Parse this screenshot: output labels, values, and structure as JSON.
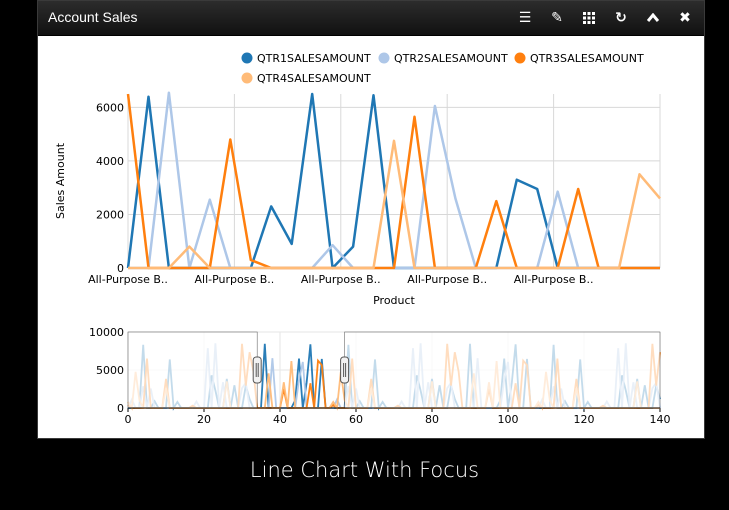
{
  "window": {
    "title": "Account Sales",
    "icons": [
      "menu-icon",
      "pencil-icon",
      "grid-icon",
      "refresh-icon",
      "collapse-icon",
      "close-icon"
    ]
  },
  "caption": "Line Chart With Focus",
  "chart_data": {
    "type": "line",
    "ylabel": "Sales Amount",
    "xlabel": "Product",
    "ylim": [
      0,
      6500
    ],
    "yticks": [
      0,
      2000,
      4000,
      6000
    ],
    "xtick_labels": [
      "All-Purpose B..",
      "All-Purpose B..",
      "All-Purpose B..",
      "All-Purpose B..",
      "All-Purpose B.."
    ],
    "legend_position": "top-right",
    "focus_range": [
      34,
      57
    ],
    "series": [
      {
        "name": "QTR1SALESAMOUNT",
        "color": "#1f77b4",
        "values": [
          0,
          6400,
          0,
          0,
          0,
          0,
          0,
          2300,
          900,
          6500,
          0,
          800,
          6450,
          0,
          0,
          0,
          0,
          0,
          0,
          3300,
          2950,
          0,
          0,
          0,
          0,
          0,
          0
        ]
      },
      {
        "name": "QTR2SALESAMOUNT",
        "color": "#aec7e8",
        "values": [
          0,
          0,
          6550,
          0,
          2550,
          0,
          0,
          0,
          0,
          0,
          850,
          0,
          0,
          0,
          0,
          6050,
          2600,
          0,
          0,
          0,
          0,
          2850,
          0,
          0,
          0,
          0,
          0
        ]
      },
      {
        "name": "QTR3SALESAMOUNT",
        "color": "#ff7f0e",
        "values": [
          6500,
          0,
          0,
          0,
          0,
          4800,
          300,
          0,
          0,
          0,
          0,
          0,
          0,
          0,
          5650,
          0,
          0,
          0,
          2500,
          0,
          0,
          0,
          2950,
          0,
          0,
          0,
          0
        ]
      },
      {
        "name": "QTR4SALESAMOUNT",
        "color": "#ffbb78",
        "values": [
          0,
          0,
          0,
          800,
          0,
          0,
          0,
          0,
          0,
          0,
          0,
          0,
          0,
          4750,
          0,
          0,
          0,
          0,
          0,
          0,
          0,
          0,
          0,
          0,
          0,
          3500,
          2600
        ]
      }
    ],
    "context": {
      "xlim": [
        0,
        140
      ],
      "ylim": [
        0,
        10000
      ],
      "xticks": [
        0,
        20,
        40,
        60,
        80,
        100,
        120,
        140
      ],
      "yticks": [
        0,
        5000,
        10000
      ]
    }
  }
}
